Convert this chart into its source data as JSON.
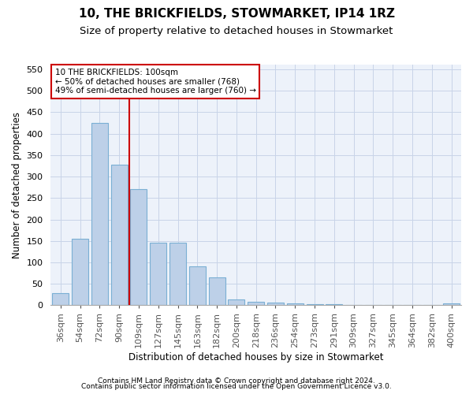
{
  "title": "10, THE BRICKFIELDS, STOWMARKET, IP14 1RZ",
  "subtitle": "Size of property relative to detached houses in Stowmarket",
  "xlabel": "Distribution of detached houses by size in Stowmarket",
  "ylabel": "Number of detached properties",
  "categories": [
    "36sqm",
    "54sqm",
    "72sqm",
    "90sqm",
    "109sqm",
    "127sqm",
    "145sqm",
    "163sqm",
    "182sqm",
    "200sqm",
    "218sqm",
    "236sqm",
    "254sqm",
    "273sqm",
    "291sqm",
    "309sqm",
    "327sqm",
    "345sqm",
    "364sqm",
    "382sqm",
    "400sqm"
  ],
  "values": [
    28,
    155,
    425,
    328,
    270,
    145,
    145,
    90,
    65,
    13,
    9,
    7,
    4,
    3,
    2,
    1,
    1,
    1,
    0,
    0,
    4
  ],
  "bar_color": "#bdd0e8",
  "bar_edgecolor": "#7aafd4",
  "property_line_x": 3.5,
  "property_line_color": "#cc0000",
  "annotation_text": "10 THE BRICKFIELDS: 100sqm\n← 50% of detached houses are smaller (768)\n49% of semi-detached houses are larger (760) →",
  "annotation_box_color": "#cc0000",
  "ylim": [
    0,
    560
  ],
  "yticks": [
    0,
    50,
    100,
    150,
    200,
    250,
    300,
    350,
    400,
    450,
    500,
    550
  ],
  "grid_color": "#c8d4e8",
  "bg_color": "#edf2fa",
  "footer1": "Contains HM Land Registry data © Crown copyright and database right 2024.",
  "footer2": "Contains public sector information licensed under the Open Government Licence v3.0.",
  "title_fontsize": 11,
  "subtitle_fontsize": 9.5,
  "xlabel_fontsize": 8.5,
  "ylabel_fontsize": 8.5,
  "tick_fontsize": 8,
  "footer_fontsize": 6.5
}
